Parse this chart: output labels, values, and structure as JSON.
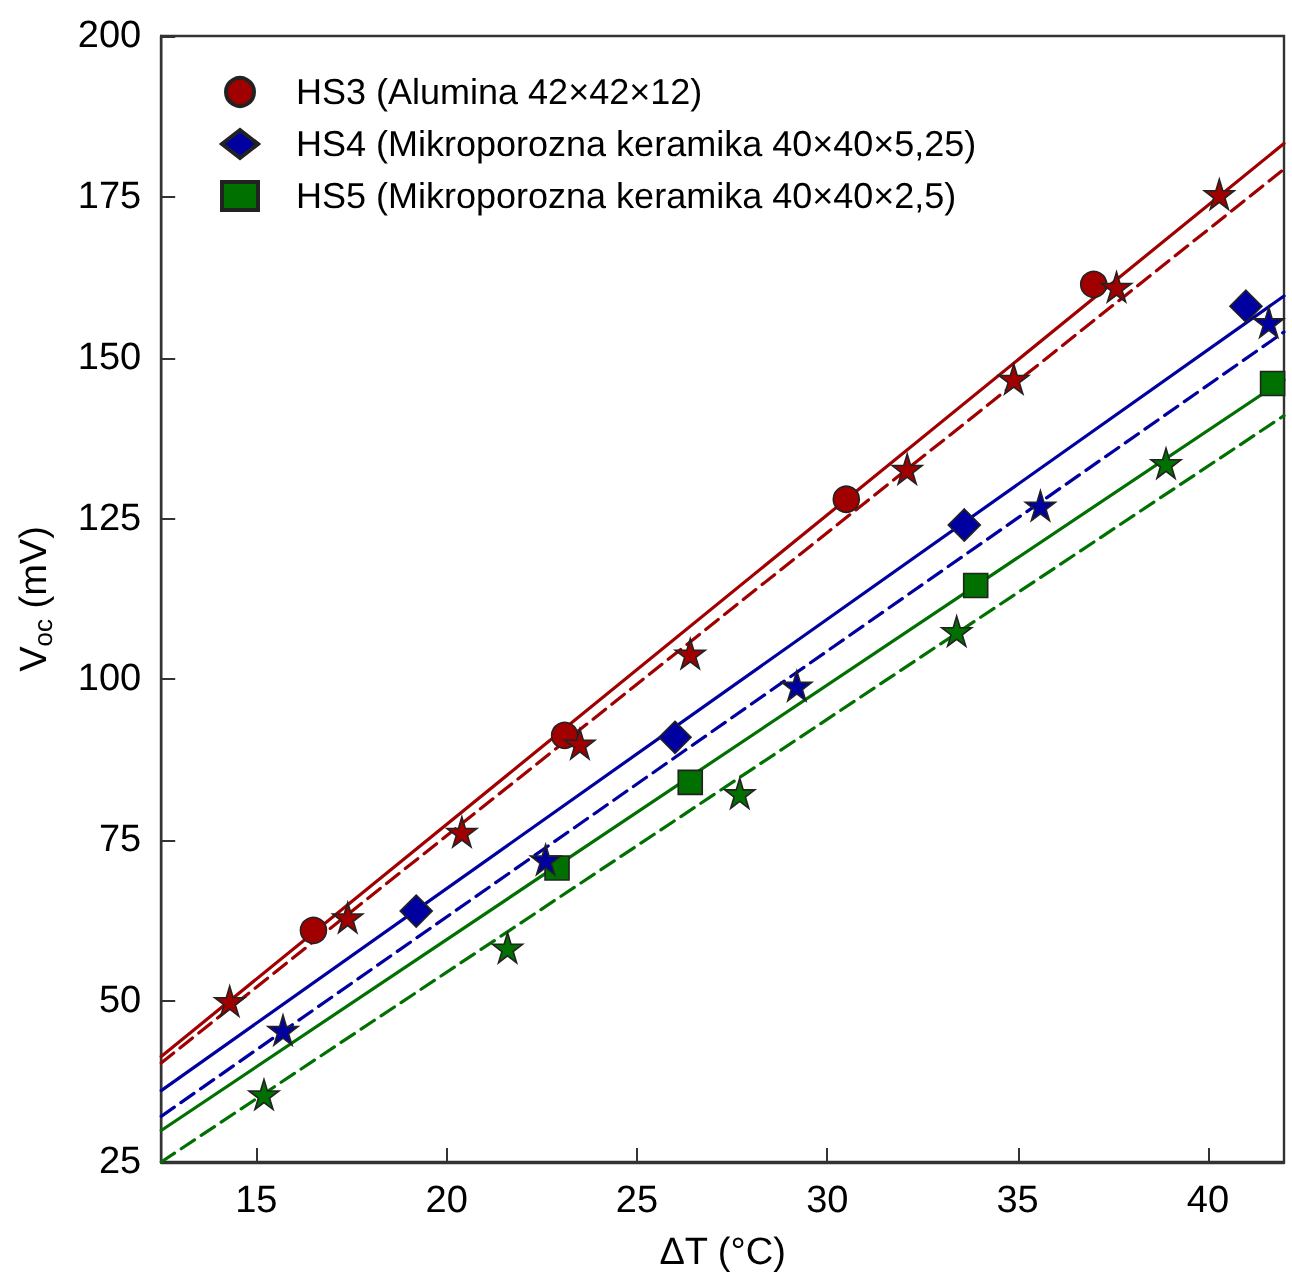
{
  "chart_data": {
    "type": "scatter",
    "xlabel": "ΔT (°C)",
    "ylabel": "V$_{oc}$ (mV)",
    "xlim": [
      12.5,
      42
    ],
    "xticks": [
      15,
      20,
      25,
      30,
      35,
      40
    ],
    "ylim": [
      25,
      200
    ],
    "yticks": [
      25,
      50,
      75,
      100,
      125,
      150,
      175,
      200
    ],
    "grid": false,
    "legend": "top left",
    "series": [
      {
        "name": "HS3 (Alumina 42×42×12)",
        "color": "#a00000",
        "marker": "circle",
        "x": [
          16.5,
          23.1,
          30.5,
          37.0
        ],
        "values": [
          61,
          91.3,
          128,
          161.4
        ]
      },
      {
        "name": "HS4 (Mikroporozna keramika 40×40×5,25)",
        "color": "#0000a0",
        "marker": "diamond",
        "x": [
          19.2,
          26.0,
          33.6,
          41.0
        ],
        "values": [
          64,
          91,
          124,
          158
        ]
      },
      {
        "name": "HS5 (Mikroporozna keramika 40×40×2,5)",
        "color": "#007000",
        "marker": "square",
        "x": [
          22.9,
          26.4,
          33.9,
          41.7
        ],
        "values": [
          70.7,
          84,
          114.6,
          146
        ]
      },
      {
        "color": "#a00000",
        "marker": "star",
        "x": [
          14.3,
          17.4,
          20.4,
          23.5,
          26.4,
          32.1,
          34.9,
          37.6,
          40.3
        ],
        "values": [
          50,
          63,
          76.3,
          90,
          104,
          132.7,
          146.7,
          161,
          175.4
        ]
      },
      {
        "color": "#0000a0",
        "marker": "star",
        "x": [
          15.7,
          22.6,
          29.2,
          35.6,
          41.6
        ],
        "values": [
          45.5,
          72,
          99,
          127,
          155.5
        ]
      },
      {
        "color": "#007000",
        "marker": "star",
        "x": [
          15.2,
          21.6,
          27.7,
          33.4,
          38.9
        ],
        "values": [
          35.5,
          58.3,
          82.3,
          107.5,
          133.6
        ]
      },
      {
        "type": "line",
        "color": "#a00000",
        "marker": "none",
        "line_style": "solid",
        "x": [
          12.5,
          42
        ],
        "values": [
          41.4,
          183.3
        ]
      },
      {
        "type": "line",
        "color": "#a00000",
        "marker": "none",
        "line_style": "dashed",
        "x": [
          12.5,
          42
        ],
        "values": [
          40.4,
          179.3
        ]
      },
      {
        "type": "line",
        "color": "#0000a0",
        "marker": "none",
        "line_style": "solid",
        "x": [
          12.5,
          42
        ],
        "values": [
          36.1,
          159.6
        ]
      },
      {
        "type": "line",
        "color": "#0000a0",
        "marker": "none",
        "line_style": "dashed",
        "x": [
          12.5,
          42
        ],
        "values": [
          32.1,
          154
        ]
      },
      {
        "type": "line",
        "color": "#007000",
        "marker": "none",
        "line_style": "solid",
        "x": [
          12.5,
          42
        ],
        "values": [
          29.9,
          146.6
        ]
      },
      {
        "type": "line",
        "color": "#007000",
        "marker": "none",
        "line_style": "dashed",
        "x": [
          12.5,
          42
        ],
        "values": [
          25,
          141
        ]
      }
    ]
  }
}
